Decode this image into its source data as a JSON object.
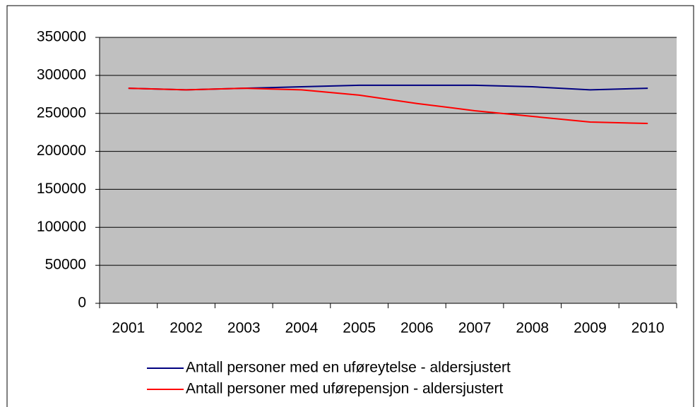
{
  "chart_data": {
    "type": "line",
    "categories": [
      "2001",
      "2002",
      "2003",
      "2004",
      "2005",
      "2006",
      "2007",
      "2008",
      "2009",
      "2010"
    ],
    "series": [
      {
        "name": "Antall personer med en uføreytelse - aldersjustert",
        "color": "#000080",
        "values": [
          283000,
          281000,
          283000,
          285000,
          287000,
          287000,
          287000,
          285000,
          281000,
          283000
        ]
      },
      {
        "name": "Antall personer med uførepensjon - aldersjustert",
        "color": "#ff0000",
        "values": [
          283000,
          281000,
          283000,
          281000,
          274000,
          263000,
          253500,
          246000,
          238600,
          236700
        ]
      }
    ],
    "ylim": [
      0,
      350000
    ],
    "yticks": [
      0,
      50000,
      100000,
      150000,
      200000,
      250000,
      300000,
      350000
    ],
    "grid": true,
    "legend": "bottom"
  }
}
